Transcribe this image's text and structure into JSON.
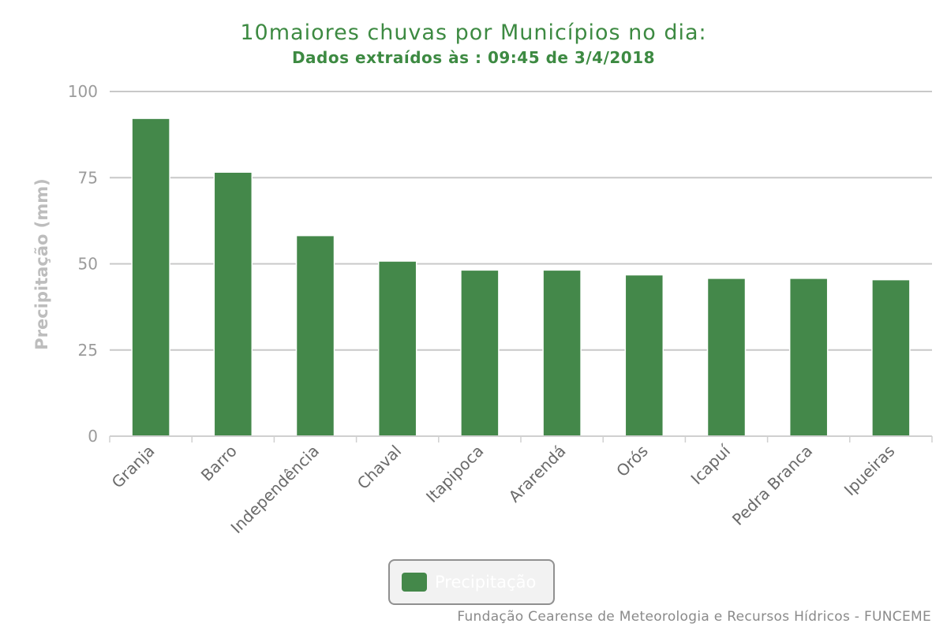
{
  "chart_data": {
    "type": "bar",
    "title": "10maiores chuvas por Municípios no dia:",
    "subtitle": "Dados extraídos às : 09:45 de 3/4/2018",
    "xlabel": "",
    "ylabel": "Precipitação (mm)",
    "ylim": [
      0,
      100
    ],
    "yticks": [
      0,
      25,
      50,
      75,
      100
    ],
    "grid": true,
    "legend_position": "bottom-center",
    "categories": [
      "Granja",
      "Barro",
      "Independência",
      "Chaval",
      "Itapipoca",
      "Ararendá",
      "Orós",
      "Icapuí",
      "Pedra Branca",
      "Ipueiras"
    ],
    "series": [
      {
        "name": "Precipitação",
        "values": [
          92.2,
          76.6,
          58.2,
          50.8,
          48.2,
          48.2,
          46.8,
          45.8,
          45.8,
          45.4
        ]
      }
    ]
  },
  "legend": {
    "label": "Precipitação"
  },
  "credits": "Fundação Cearense de Meteorologia e Recursos Hídricos - FUNCEME",
  "colors": {
    "bar": "#44884a",
    "title": "#3d8a42",
    "axis_text": "#9b9b9b",
    "grid": "#c8c8c8"
  }
}
